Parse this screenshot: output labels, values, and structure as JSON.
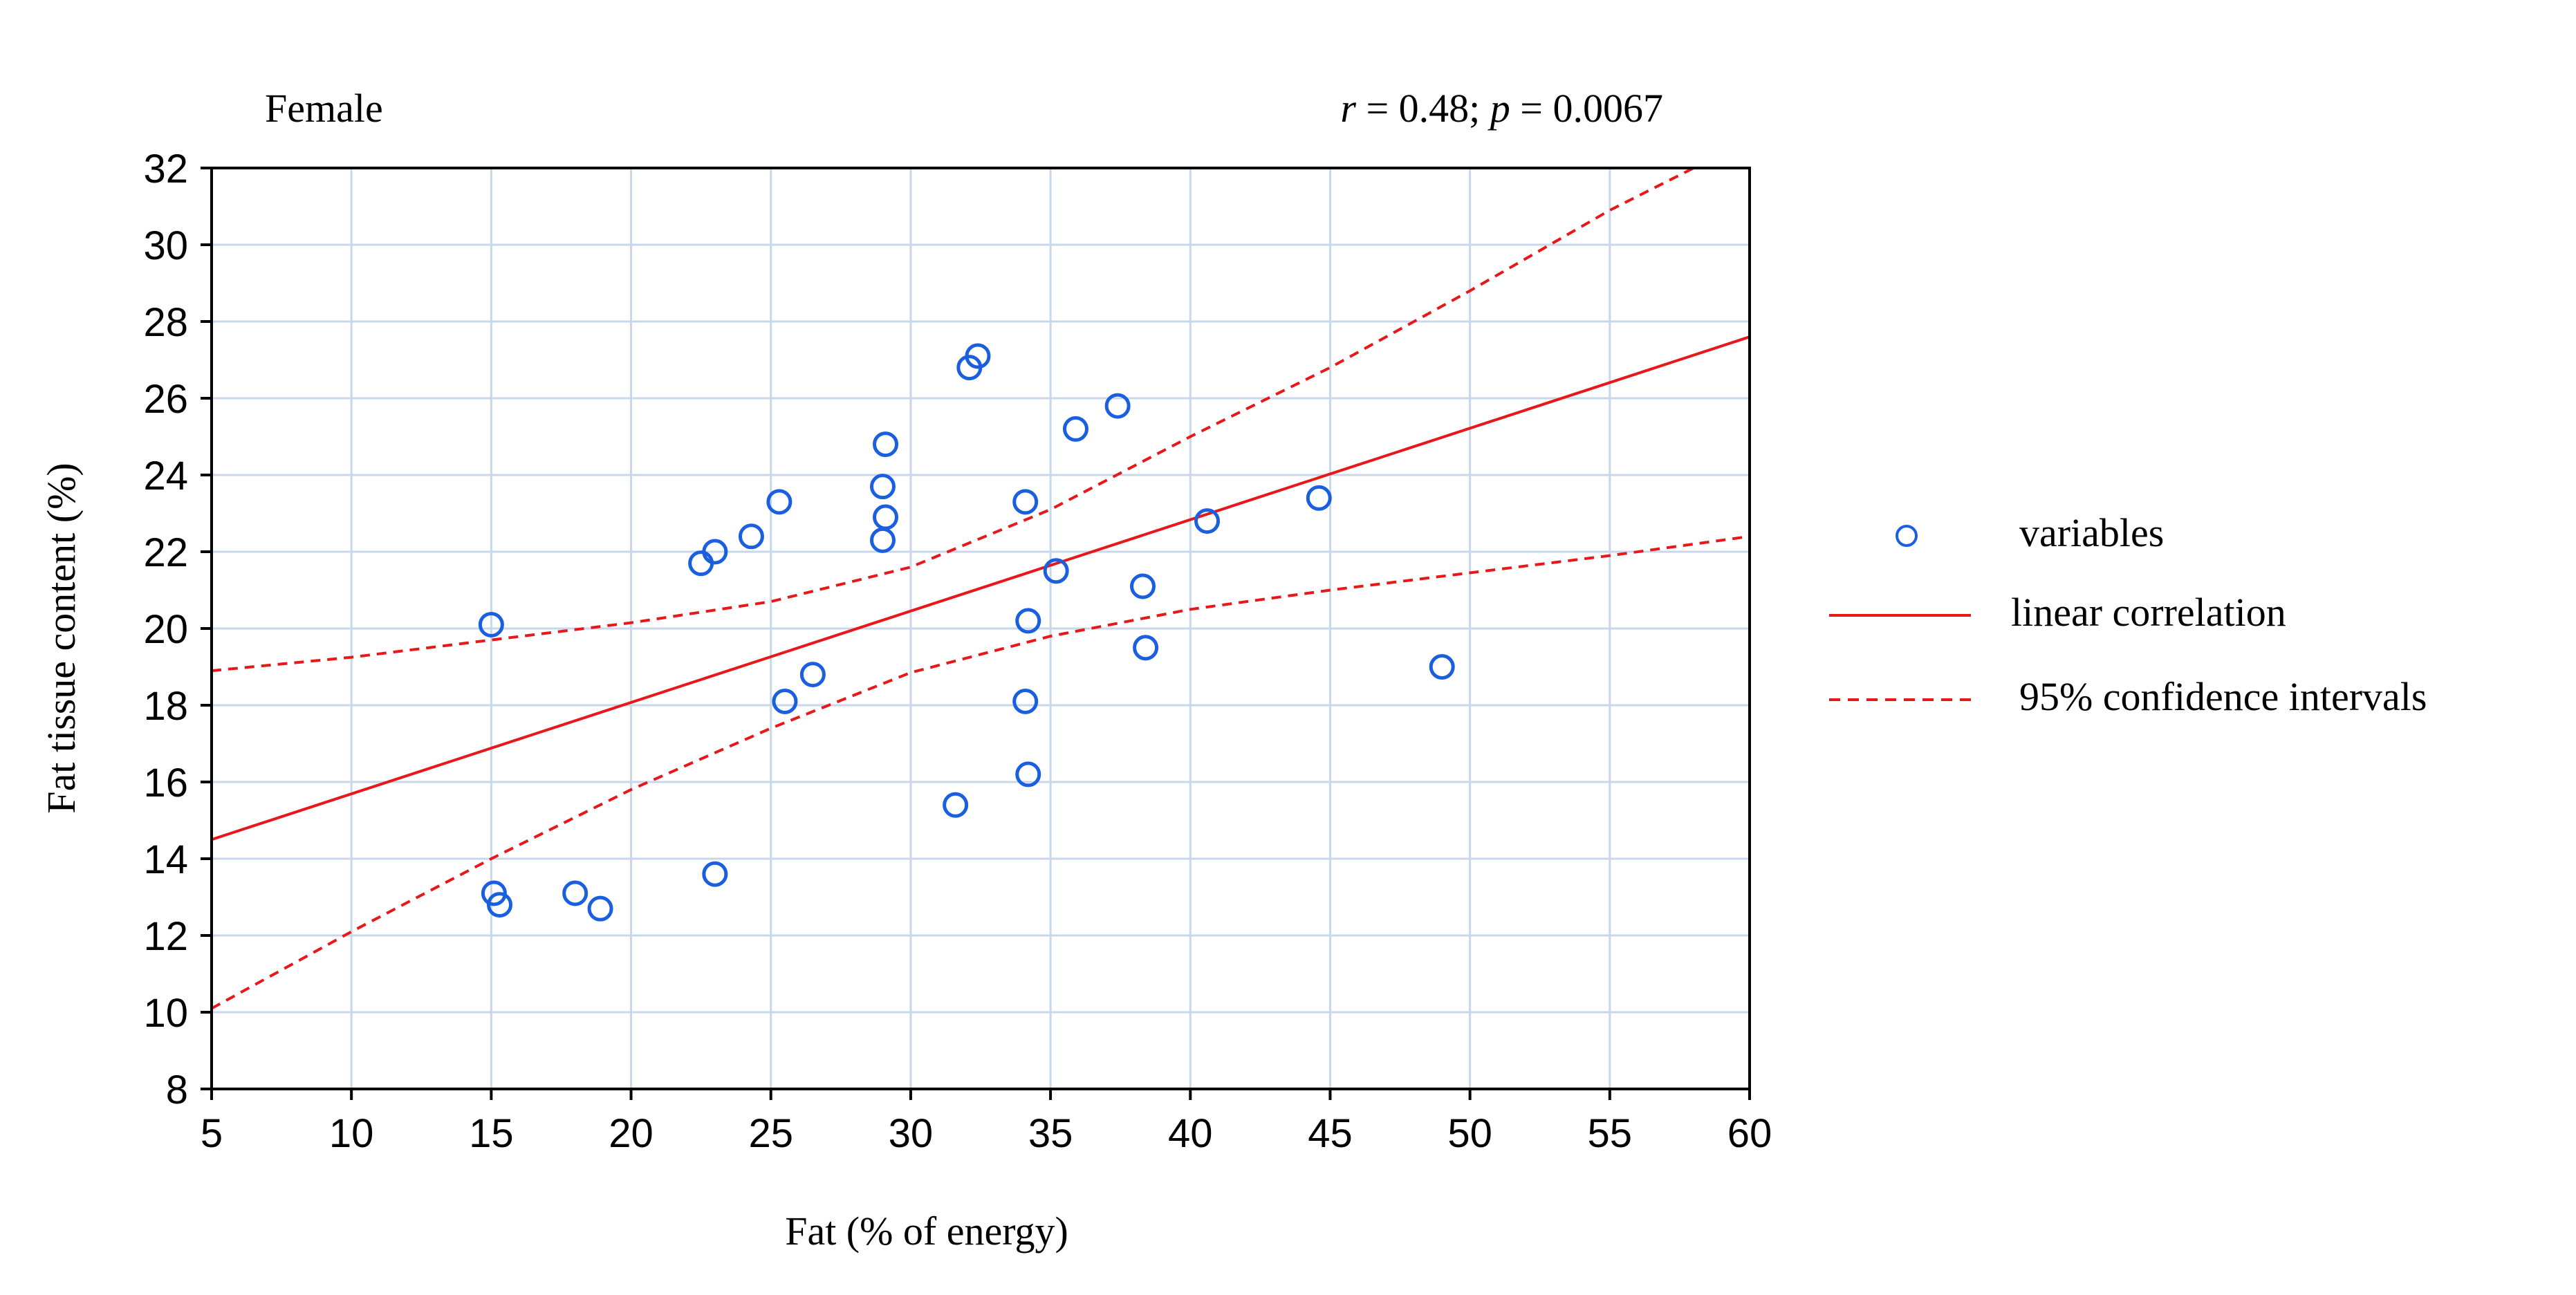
{
  "chart_data": {
    "type": "scatter",
    "title": "Female",
    "stats": {
      "r_label": "r",
      "r_value": " = 0.48; ",
      "p_label": "p",
      "p_value": " = 0.0067"
    },
    "xlabel": "Fat (% of energy)",
    "ylabel": "Fat tissue content (%)",
    "xlim": [
      5,
      60
    ],
    "ylim": [
      8,
      32
    ],
    "xticks": [
      5,
      10,
      15,
      20,
      25,
      30,
      35,
      40,
      45,
      50,
      55,
      60
    ],
    "yticks": [
      8,
      10,
      12,
      14,
      16,
      18,
      20,
      22,
      24,
      26,
      28,
      30,
      32
    ],
    "grid": true,
    "points": [
      {
        "x": 15.0,
        "y": 20.1
      },
      {
        "x": 15.1,
        "y": 13.1
      },
      {
        "x": 15.3,
        "y": 12.8
      },
      {
        "x": 18.0,
        "y": 13.1
      },
      {
        "x": 18.9,
        "y": 12.7
      },
      {
        "x": 22.5,
        "y": 21.7
      },
      {
        "x": 23.0,
        "y": 22.0
      },
      {
        "x": 23.0,
        "y": 13.6
      },
      {
        "x": 24.3,
        "y": 22.4
      },
      {
        "x": 25.3,
        "y": 23.3
      },
      {
        "x": 25.5,
        "y": 18.1
      },
      {
        "x": 26.5,
        "y": 18.8
      },
      {
        "x": 29.0,
        "y": 23.7
      },
      {
        "x": 29.1,
        "y": 24.8
      },
      {
        "x": 29.1,
        "y": 22.9
      },
      {
        "x": 29.0,
        "y": 22.3
      },
      {
        "x": 31.6,
        "y": 15.4
      },
      {
        "x": 32.1,
        "y": 26.8
      },
      {
        "x": 32.4,
        "y": 27.1
      },
      {
        "x": 34.1,
        "y": 23.3
      },
      {
        "x": 34.2,
        "y": 20.2
      },
      {
        "x": 34.1,
        "y": 18.1
      },
      {
        "x": 34.2,
        "y": 16.2
      },
      {
        "x": 35.2,
        "y": 21.5
      },
      {
        "x": 35.9,
        "y": 25.2
      },
      {
        "x": 37.4,
        "y": 25.8
      },
      {
        "x": 38.3,
        "y": 21.1
      },
      {
        "x": 38.4,
        "y": 19.5
      },
      {
        "x": 40.6,
        "y": 22.8
      },
      {
        "x": 44.6,
        "y": 23.4
      },
      {
        "x": 49.0,
        "y": 19.0
      }
    ],
    "regression": {
      "x": [
        5,
        60
      ],
      "y": [
        14.5,
        27.6
      ]
    },
    "ci_upper": {
      "x": [
        5,
        10,
        15,
        20,
        25,
        30,
        35,
        40,
        45,
        50,
        55,
        58
      ],
      "y": [
        18.9,
        19.25,
        19.7,
        20.15,
        20.7,
        21.6,
        23.1,
        25.0,
        26.8,
        28.8,
        30.9,
        32.0
      ]
    },
    "ci_lower": {
      "x": [
        5,
        10,
        15,
        20,
        25,
        30,
        35,
        40,
        45,
        50,
        55,
        60
      ],
      "y": [
        10.1,
        12.1,
        14.0,
        15.8,
        17.4,
        18.85,
        19.8,
        20.5,
        21.0,
        21.45,
        21.9,
        22.4
      ]
    },
    "legend": {
      "position": "right",
      "items": [
        {
          "label": "variables",
          "kind": "marker"
        },
        {
          "label": "linear correlation",
          "kind": "solid"
        },
        {
          "label": "95% confidence intervals",
          "kind": "dashed"
        }
      ]
    },
    "colors": {
      "points": "#1a5fe0",
      "line": "#e8171a",
      "grid": "#c8d7ea",
      "axis": "#000000"
    }
  }
}
